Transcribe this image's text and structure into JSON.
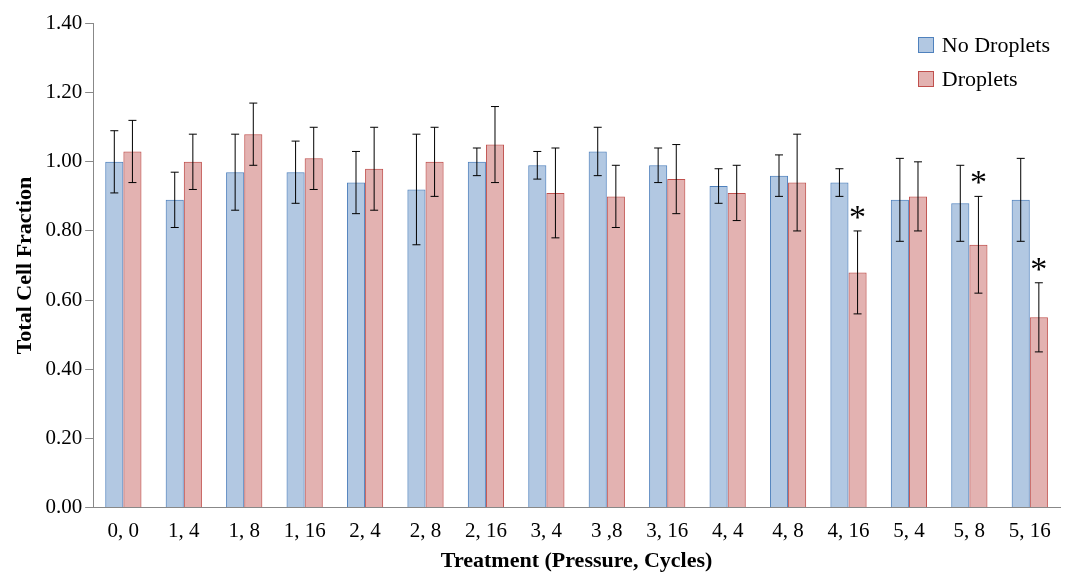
{
  "chart_data": {
    "type": "bar",
    "xlabel": "Treatment (Pressure, Cycles)",
    "ylabel": "Total Cell Fraction",
    "categories": [
      "0, 0",
      "1, 4",
      "1, 8",
      "1, 16",
      "2, 4",
      "2, 8",
      "2, 16",
      "3, 4",
      "3 ,8",
      "3, 16",
      "4, 4",
      "4, 8",
      "4, 16",
      "5, 4",
      "5, 8",
      "5, 16"
    ],
    "series": [
      {
        "name": "No Droplets",
        "color": "#4f81bd",
        "values": [
          1.0,
          0.89,
          0.97,
          0.97,
          0.94,
          0.92,
          1.0,
          0.99,
          1.03,
          0.99,
          0.93,
          0.96,
          0.94,
          0.89,
          0.88,
          0.89
        ],
        "errors": [
          0.09,
          0.08,
          0.11,
          0.09,
          0.09,
          0.16,
          0.04,
          0.04,
          0.07,
          0.05,
          0.05,
          0.06,
          0.04,
          0.12,
          0.11,
          0.12
        ]
      },
      {
        "name": "Droplets",
        "color": "#c0504d",
        "values": [
          1.03,
          1.0,
          1.08,
          1.01,
          0.98,
          1.0,
          1.05,
          0.91,
          0.9,
          0.95,
          0.91,
          0.94,
          0.68,
          0.9,
          0.76,
          0.55
        ],
        "errors": [
          0.09,
          0.08,
          0.09,
          0.09,
          0.12,
          0.1,
          0.11,
          0.13,
          0.09,
          0.1,
          0.08,
          0.14,
          0.12,
          0.1,
          0.14,
          0.1
        ]
      }
    ],
    "ylim": [
      0,
      1.4
    ],
    "yticks": [
      {
        "value": 0,
        "label": "0.00"
      },
      {
        "value": 0.2,
        "label": "0.20"
      },
      {
        "value": 0.4,
        "label": "0.40"
      },
      {
        "value": 0.6,
        "label": "0.60"
      },
      {
        "value": 0.8,
        "label": "0.80"
      },
      {
        "value": 1.0,
        "label": "1.00"
      },
      {
        "value": 1.2,
        "label": "1.20"
      },
      {
        "value": 1.4,
        "label": "1.40"
      }
    ],
    "grid": false,
    "legend": "top right",
    "annotations": [
      {
        "text": "*",
        "x": "4, 16",
        "y": 0.68
      },
      {
        "text": "*",
        "x": "5, 8",
        "y": 0.76
      },
      {
        "text": "*",
        "x": "5, 16",
        "y": 0.55
      }
    ]
  }
}
